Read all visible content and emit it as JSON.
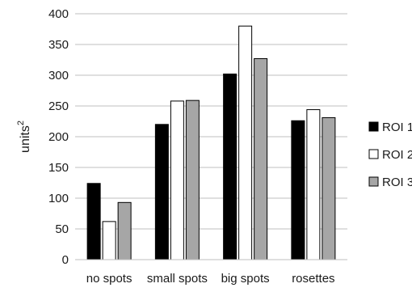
{
  "chart_data": {
    "type": "bar",
    "categories": [
      "no spots",
      "small spots",
      "big spots",
      "rosettes"
    ],
    "series": [
      {
        "name": "ROI 1",
        "values": [
          124,
          220,
          302,
          226
        ],
        "color": "#000000"
      },
      {
        "name": "ROI 2",
        "values": [
          62,
          258,
          380,
          244
        ],
        "color": "#ffffff"
      },
      {
        "name": "ROI 3",
        "values": [
          93,
          259,
          327,
          231
        ],
        "color": "#a6a6a6"
      }
    ],
    "title": "",
    "xlabel": "",
    "ylabel": "units",
    "ylabel_superscript": "2",
    "ylim": [
      0,
      400
    ],
    "yticks": [
      0,
      50,
      100,
      150,
      200,
      250,
      300,
      350,
      400
    ],
    "grid": true,
    "legend_position": "right"
  }
}
